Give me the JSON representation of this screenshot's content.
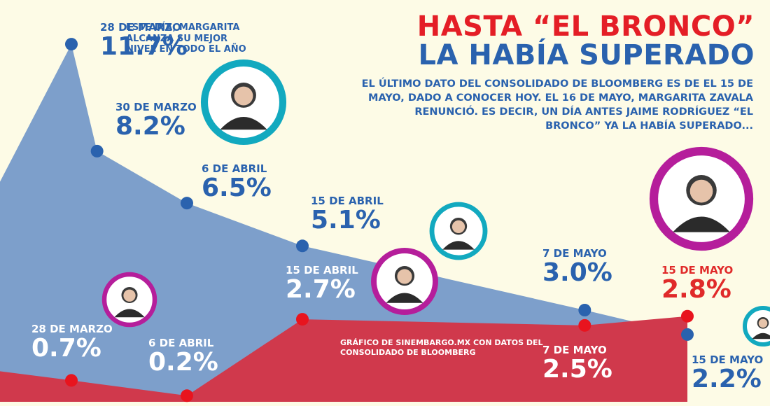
{
  "chart_data": {
    "type": "area",
    "title": "HASTA “EL BRONCO” LA HABÍA SUPERADO",
    "xlabel": "",
    "ylabel": "",
    "ylim": [
      0,
      12
    ],
    "series": [
      {
        "name": "Margarita Zavala",
        "color": "#7d9fcb",
        "marker_color": "#2a62ae",
        "points": [
          {
            "date": "28 DE MARZO",
            "value": 11.7,
            "label": "11.7%"
          },
          {
            "date": "30 DE MARZO",
            "value": 8.2,
            "label": "8.2%"
          },
          {
            "date": "6 DE ABRIL",
            "value": 6.5,
            "label": "6.5%"
          },
          {
            "date": "15 DE ABRIL",
            "value": 5.1,
            "label": "5.1%"
          },
          {
            "date": "7 DE MAYO",
            "value": 3.0,
            "label": "3.0%"
          },
          {
            "date": "15 DE MAYO",
            "value": 2.2,
            "label": "2.2%"
          }
        ]
      },
      {
        "name": "Jaime Rodríguez “El Bronco”",
        "color": "#d0394c",
        "marker_color": "#e8141e",
        "points": [
          {
            "date": "28 DE MARZO",
            "value": 0.7,
            "label": "0.7%"
          },
          {
            "date": "6 DE ABRIL",
            "value": 0.2,
            "label": "0.2%"
          },
          {
            "date": "15 DE ABRIL",
            "value": 2.7,
            "label": "2.7%"
          },
          {
            "date": "7 DE MAYO",
            "value": 2.5,
            "label": "2.5%"
          },
          {
            "date": "15 DE MAYO",
            "value": 2.8,
            "label": "2.8%"
          }
        ]
      }
    ],
    "headline": [
      "HASTA “EL BRONCO”",
      "LA HABÍA SUPERADO"
    ],
    "intro": "EL ÚLTIMO DATO DEL CONSOLIDADO DE BLOOMBERG ES DE EL 15 DE MAYO, DADO A CONOCER HOY. EL 16 DE MAYO, MARGARITA ZAVALA RENUNCIÓ. ES DECIR, UN DÍA ANTES JAIME RODRÍGUEZ “EL BRONCO” YA LA HABÍA SUPERADO...",
    "annotation": "ESTE DÍA, MARGARITA ALCANZA SU MEJOR NIVEL EN TODO EL AÑO",
    "credit": "GRÁFICO DE SINEMBARGO.MX CON DATOS DEL CONSOLIDADO DE BLOOMBERG"
  },
  "theme": {
    "blue": "#2a62ae",
    "blue_area": "#7d9fcb",
    "red": "#e02a2a",
    "red_area": "#d0394c",
    "teal": "#12a9bf",
    "magenta": "#b51e9b",
    "background": "#fdfbe6"
  },
  "portraits": [
    {
      "name": "margarita-portrait-large",
      "icon": "person-portrait-icon",
      "ring": "#12a9bf"
    },
    {
      "name": "bronco-portrait-small",
      "icon": "person-portrait-icon",
      "ring": "#b51e9b"
    },
    {
      "name": "bronco-portrait-mid",
      "icon": "person-portrait-icon",
      "ring": "#b51e9b"
    },
    {
      "name": "margarita-portrait-mid",
      "icon": "person-portrait-icon",
      "ring": "#12a9bf"
    },
    {
      "name": "bronco-portrait-large",
      "icon": "person-portrait-icon",
      "ring": "#b51e9b"
    },
    {
      "name": "margarita-portrait-edge",
      "icon": "person-portrait-icon",
      "ring": "#12a9bf"
    }
  ]
}
